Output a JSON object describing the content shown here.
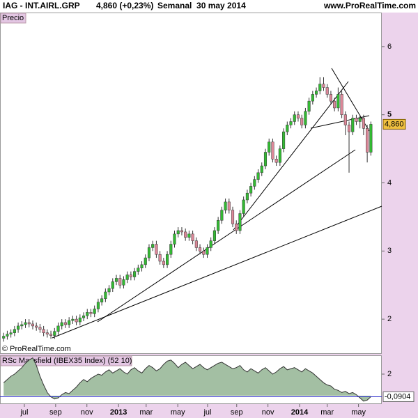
{
  "header": {
    "symbol": "IAG - INT.AIRL.GRP",
    "change": "4,860 (+0,23%)",
    "period": "Semanal  30 may 2014",
    "site": "www.ProRealTime.com",
    "copyright": "© ProRealTime.com"
  },
  "chart_data": [
    {
      "type": "candlestick",
      "title": "Precio",
      "color_up": "#33bb33",
      "color_down": "#dd8899",
      "xlim": [
        -1,
        104
      ],
      "ylim": [
        1.49,
        6.5
      ],
      "yticks": [
        2,
        3,
        4,
        5,
        6
      ],
      "last_price": {
        "value": 4.86,
        "label": "4,860"
      },
      "open": [
        1.72,
        1.75,
        1.78,
        1.8,
        1.85,
        1.9,
        1.92,
        1.95,
        1.93,
        1.9,
        1.88,
        1.85,
        1.8,
        1.78,
        1.76,
        1.82,
        1.9,
        1.95,
        1.92,
        1.98,
        2.0,
        1.96,
        2.02,
        2.05,
        2.1,
        2.08,
        2.15,
        2.25,
        2.3,
        2.4,
        2.45,
        2.55,
        2.6,
        2.5,
        2.58,
        2.65,
        2.62,
        2.7,
        2.75,
        2.8,
        2.9,
        3.05,
        3.1,
        2.95,
        2.85,
        2.8,
        2.95,
        3.1,
        3.25,
        3.3,
        3.28,
        3.2,
        3.25,
        3.15,
        3.05,
        3.0,
        2.95,
        3.05,
        3.15,
        3.3,
        3.45,
        3.6,
        3.72,
        3.6,
        3.4,
        3.3,
        3.55,
        3.75,
        3.85,
        3.95,
        4.05,
        4.15,
        4.25,
        4.45,
        4.6,
        4.35,
        4.3,
        4.5,
        4.75,
        4.85,
        4.9,
        5.0,
        4.95,
        4.85,
        5.05,
        5.2,
        5.3,
        5.35,
        5.45,
        5.4,
        5.3,
        5.2,
        5.1,
        5.3,
        5.0,
        4.85,
        4.75,
        4.95,
        4.9,
        4.95,
        4.8,
        4.45
      ],
      "high": [
        1.8,
        1.83,
        1.85,
        1.9,
        1.95,
        1.97,
        2.0,
        2.0,
        1.98,
        1.95,
        1.93,
        1.9,
        1.85,
        1.83,
        1.87,
        1.95,
        2.0,
        2.0,
        2.03,
        2.05,
        2.05,
        2.07,
        2.1,
        2.15,
        2.15,
        2.2,
        2.3,
        2.35,
        2.45,
        2.5,
        2.6,
        2.65,
        2.65,
        2.63,
        2.7,
        2.7,
        2.75,
        2.8,
        2.85,
        2.95,
        3.1,
        3.15,
        3.15,
        3.0,
        2.9,
        3.0,
        3.15,
        3.3,
        3.35,
        3.35,
        3.33,
        3.3,
        3.3,
        3.2,
        3.1,
        3.05,
        3.1,
        3.2,
        3.35,
        3.5,
        3.65,
        3.77,
        3.77,
        3.65,
        3.45,
        3.6,
        3.8,
        3.9,
        4.0,
        4.1,
        4.2,
        4.3,
        4.5,
        4.65,
        4.65,
        4.4,
        4.55,
        4.8,
        4.9,
        4.95,
        5.05,
        5.05,
        5.0,
        5.1,
        5.25,
        5.35,
        5.4,
        5.55,
        5.55,
        5.45,
        5.35,
        5.25,
        5.4,
        5.35,
        5.05,
        4.9,
        5.0,
        5.0,
        5.0,
        5.0,
        4.85,
        4.9
      ],
      "low": [
        1.67,
        1.7,
        1.73,
        1.75,
        1.8,
        1.85,
        1.87,
        1.88,
        1.85,
        1.83,
        1.8,
        1.75,
        1.73,
        1.71,
        1.71,
        1.77,
        1.85,
        1.87,
        1.87,
        1.93,
        1.91,
        1.91,
        1.97,
        2.0,
        2.03,
        2.03,
        2.1,
        2.2,
        2.25,
        2.35,
        2.4,
        2.5,
        2.45,
        2.45,
        2.53,
        2.57,
        2.57,
        2.65,
        2.7,
        2.75,
        2.85,
        3.0,
        2.9,
        2.8,
        2.75,
        2.75,
        2.9,
        3.05,
        3.2,
        3.23,
        3.15,
        3.15,
        3.1,
        3.0,
        2.95,
        2.9,
        2.9,
        3.0,
        3.1,
        3.25,
        3.4,
        3.55,
        3.55,
        3.35,
        3.25,
        3.25,
        3.5,
        3.7,
        3.8,
        3.9,
        4.0,
        4.1,
        4.2,
        4.4,
        4.3,
        4.25,
        4.25,
        4.45,
        4.7,
        4.8,
        4.85,
        4.9,
        4.8,
        4.8,
        5.0,
        5.15,
        5.25,
        5.3,
        5.35,
        5.25,
        5.15,
        5.05,
        5.05,
        4.95,
        4.7,
        4.15,
        4.7,
        4.85,
        4.8,
        4.7,
        4.3,
        4.4
      ],
      "close": [
        1.75,
        1.78,
        1.8,
        1.85,
        1.9,
        1.92,
        1.95,
        1.93,
        1.9,
        1.88,
        1.85,
        1.8,
        1.78,
        1.76,
        1.82,
        1.9,
        1.95,
        1.92,
        1.98,
        2.0,
        1.96,
        2.02,
        2.05,
        2.1,
        2.08,
        2.15,
        2.25,
        2.3,
        2.4,
        2.45,
        2.55,
        2.6,
        2.5,
        2.58,
        2.65,
        2.62,
        2.7,
        2.75,
        2.8,
        2.9,
        3.05,
        3.1,
        2.95,
        2.85,
        2.8,
        2.95,
        3.1,
        3.25,
        3.3,
        3.28,
        3.2,
        3.25,
        3.15,
        3.05,
        3.0,
        2.95,
        3.05,
        3.15,
        3.3,
        3.45,
        3.6,
        3.72,
        3.6,
        3.4,
        3.3,
        3.55,
        3.75,
        3.85,
        3.95,
        4.05,
        4.15,
        4.25,
        4.45,
        4.6,
        4.35,
        4.3,
        4.5,
        4.75,
        4.85,
        4.9,
        5.0,
        4.95,
        4.85,
        5.05,
        5.2,
        5.3,
        5.35,
        5.45,
        5.4,
        5.3,
        5.2,
        5.1,
        5.3,
        5.0,
        4.85,
        4.75,
        4.95,
        4.9,
        4.95,
        4.8,
        4.45,
        4.86
      ]
    },
    {
      "type": "area",
      "title": "RSc Mansfield (IBEX35 Index) (52 10)",
      "color": "#a3bfa3",
      "line_color": "#333333",
      "zero_color": "#3333cc",
      "xlim": [
        -1,
        104
      ],
      "ylim": [
        -0.77,
        3.74
      ],
      "yticks": [
        2
      ],
      "xticks": [
        {
          "value": 5.7,
          "label": "jul"
        },
        {
          "value": 14.3,
          "label": "sep"
        },
        {
          "value": 22.9,
          "label": "nov"
        },
        {
          "value": 31.6,
          "label": "2013"
        },
        {
          "value": 39.2,
          "label": "mar"
        },
        {
          "value": 47.9,
          "label": "may"
        },
        {
          "value": 56.1,
          "label": "jul"
        },
        {
          "value": 64.1,
          "label": "sep"
        },
        {
          "value": 72.7,
          "label": "nov"
        },
        {
          "value": 81.4,
          "label": "2014"
        },
        {
          "value": 89,
          "label": "mar"
        },
        {
          "value": 97.6,
          "label": "may"
        }
      ],
      "last_value": {
        "value": -0.0904,
        "label": "-0,0904"
      },
      "values": [
        1.2,
        1.5,
        1.8,
        2.0,
        2.3,
        2.6,
        3.0,
        3.3,
        3.5,
        2.8,
        1.8,
        1.0,
        0.3,
        -0.1,
        -0.3,
        -0.2,
        0.1,
        0.3,
        0.2,
        0.5,
        0.8,
        1.2,
        1.5,
        1.3,
        1.6,
        1.8,
        2.0,
        1.9,
        2.2,
        2.4,
        2.1,
        2.3,
        2.5,
        2.2,
        2.0,
        2.4,
        2.6,
        2.3,
        2.1,
        2.5,
        2.8,
        2.6,
        2.3,
        2.5,
        2.9,
        3.2,
        3.3,
        3.0,
        2.6,
        2.9,
        3.1,
        2.8,
        2.5,
        2.7,
        2.9,
        2.6,
        2.4,
        2.6,
        2.8,
        3.0,
        3.1,
        2.9,
        2.7,
        2.5,
        2.6,
        2.8,
        2.4,
        2.2,
        2.5,
        2.3,
        2.1,
        2.4,
        2.6,
        2.3,
        2.0,
        2.2,
        2.5,
        2.7,
        2.4,
        2.5,
        2.6,
        2.4,
        2.2,
        2.5,
        2.3,
        2.1,
        1.8,
        1.5,
        1.2,
        1.0,
        0.9,
        0.6,
        0.5,
        0.3,
        0.4,
        0.2,
        0.3,
        0.1,
        -0.2,
        -0.5,
        -0.4,
        -0.0904
      ]
    }
  ]
}
